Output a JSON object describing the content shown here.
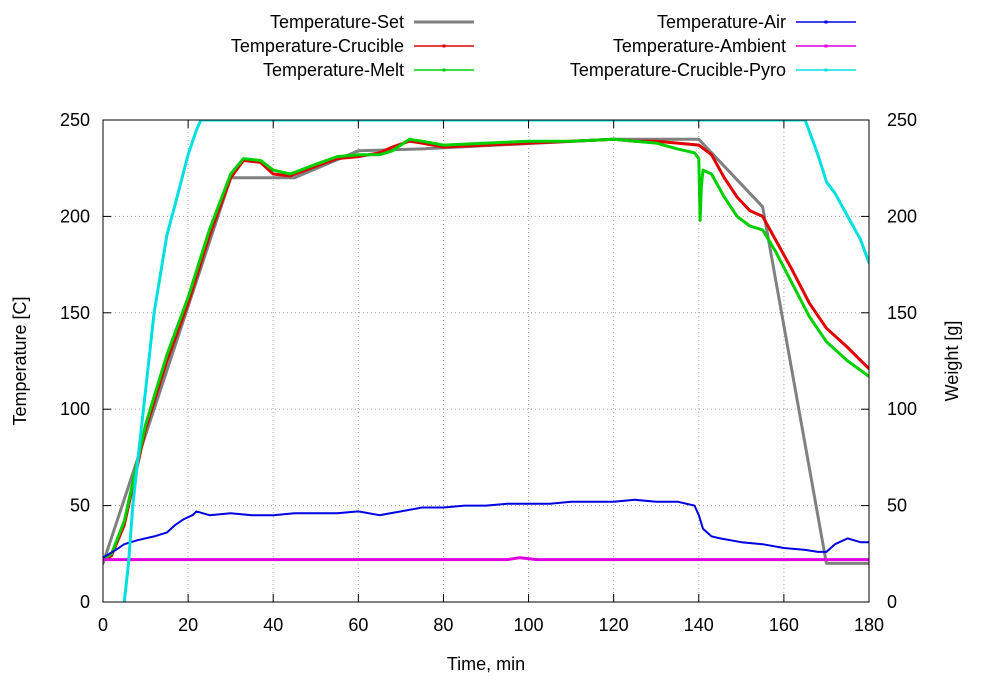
{
  "chart_data": {
    "type": "line",
    "title": "",
    "xlabel": "Time, min",
    "ylabel": "Temperature [C]",
    "y2label": "Weight [g]",
    "xlim": [
      0,
      180
    ],
    "ylim": [
      0,
      250
    ],
    "y2lim": [
      0,
      250
    ],
    "grid": true,
    "legend_position": "top",
    "xticks": [
      0,
      20,
      40,
      60,
      80,
      100,
      120,
      140,
      160,
      180
    ],
    "yticks": [
      0,
      50,
      100,
      150,
      200,
      250
    ],
    "y2ticks": [
      0,
      50,
      100,
      150,
      200,
      250
    ],
    "series": [
      {
        "name": "Temperature-Set",
        "color": "#808080",
        "x": [
          0,
          30,
          45,
          60,
          75,
          120,
          140,
          155,
          170,
          180
        ],
        "y": [
          20,
          220,
          220,
          234,
          235,
          240,
          240,
          205,
          20,
          20
        ]
      },
      {
        "name": "Temperature-Crucible",
        "color": "#e00000",
        "x": [
          0,
          2,
          5,
          10,
          15,
          20,
          25,
          30,
          33,
          37,
          40,
          44,
          50,
          55,
          60,
          65,
          68,
          72,
          75,
          80,
          90,
          100,
          110,
          120,
          125,
          130,
          135,
          140,
          143,
          146,
          149,
          152,
          155,
          158,
          162,
          166,
          170,
          175,
          180
        ],
        "y": [
          22,
          24,
          40,
          90,
          125,
          155,
          190,
          220,
          229,
          228,
          222,
          221,
          226,
          230,
          231,
          233,
          236,
          239,
          238,
          236,
          237,
          238,
          239,
          240,
          239,
          239,
          238,
          237,
          232,
          220,
          210,
          203,
          200,
          188,
          172,
          155,
          142,
          132,
          121
        ]
      },
      {
        "name": "Temperature-Melt",
        "color": "#00d000",
        "x": [
          0,
          2,
          5,
          10,
          15,
          20,
          25,
          30,
          33,
          37,
          40,
          44,
          50,
          55,
          60,
          65,
          68,
          72,
          75,
          80,
          90,
          100,
          110,
          120,
          125,
          130,
          135,
          139,
          140,
          140.3,
          140.6,
          141,
          143,
          146,
          149,
          152,
          155,
          158,
          162,
          166,
          170,
          175,
          180
        ],
        "y": [
          22,
          25,
          42,
          92,
          128,
          158,
          193,
          222,
          230,
          229,
          224,
          222,
          227,
          231,
          232,
          232,
          234,
          240,
          239,
          237,
          238,
          239,
          239,
          240,
          239,
          238,
          235,
          233,
          230,
          198,
          215,
          224,
          222,
          210,
          200,
          195,
          193,
          182,
          165,
          148,
          135,
          125,
          117
        ]
      },
      {
        "name": "Temperature-Air",
        "color": "#0000e0",
        "x": [
          0,
          3,
          5,
          8,
          12,
          15,
          17,
          19,
          21,
          22,
          25,
          30,
          35,
          40,
          45,
          50,
          55,
          60,
          65,
          70,
          75,
          80,
          85,
          90,
          95,
          100,
          105,
          110,
          115,
          120,
          125,
          130,
          135,
          139,
          140,
          141,
          143,
          145,
          150,
          155,
          160,
          165,
          168,
          170,
          172,
          175,
          178,
          180
        ],
        "y": [
          23,
          27,
          30,
          32,
          34,
          36,
          40,
          43,
          45,
          47,
          45,
          46,
          45,
          45,
          46,
          46,
          46,
          47,
          45,
          47,
          49,
          49,
          50,
          50,
          51,
          51,
          51,
          52,
          52,
          52,
          53,
          52,
          52,
          50,
          45,
          38,
          34,
          33,
          31,
          30,
          28,
          27,
          26,
          26,
          30,
          33,
          31,
          31
        ]
      },
      {
        "name": "Temperature-Ambient",
        "color": "#e000e0",
        "x": [
          0,
          50,
          95,
          98,
          102,
          140,
          180
        ],
        "y": [
          22,
          22,
          22,
          23,
          22,
          22,
          22
        ]
      },
      {
        "name": "Temperature-Crucible-Pyro",
        "color": "#00e0e0",
        "x": [
          5,
          6,
          7,
          8,
          10,
          12,
          15,
          18,
          20,
          22,
          23,
          165,
          168,
          170,
          172,
          175,
          178,
          180
        ],
        "y": [
          0,
          20,
          50,
          70,
          110,
          150,
          190,
          215,
          232,
          245,
          250,
          250,
          232,
          218,
          212,
          200,
          188,
          176
        ]
      }
    ]
  }
}
